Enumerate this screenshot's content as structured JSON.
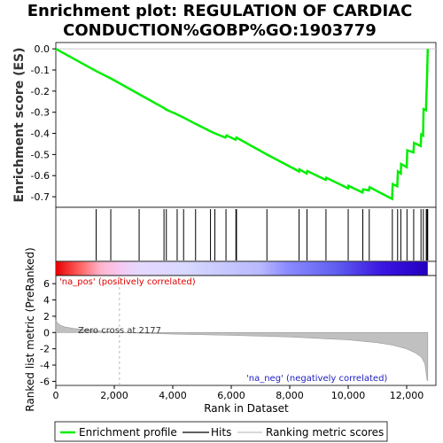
{
  "chart_data": {
    "type": "line",
    "title_line1": "Enrichment plot: REGULATION OF CARDIAC",
    "title_line2": "CONDUCTION%GOBP%GO:1903779",
    "es_panel": {
      "ylabel": "Enrichment score (ES)",
      "ylim": [
        -0.75,
        0.03
      ],
      "yticks": [
        "0.0",
        "-0.1",
        "-0.2",
        "-0.3",
        "-0.4",
        "-0.5",
        "-0.6",
        "-0.7"
      ],
      "ytick_values": [
        0.0,
        -0.1,
        -0.2,
        -0.3,
        -0.4,
        -0.5,
        -0.6,
        -0.7
      ],
      "series_color": "#00ee00",
      "profile": [
        [
          0,
          0.0
        ],
        [
          1380,
          -0.105
        ],
        [
          1880,
          -0.14
        ],
        [
          2850,
          -0.215
        ],
        [
          3700,
          -0.28
        ],
        [
          3780,
          -0.288
        ],
        [
          4150,
          -0.31
        ],
        [
          4370,
          -0.325
        ],
        [
          4780,
          -0.355
        ],
        [
          5290,
          -0.39
        ],
        [
          5440,
          -0.4
        ],
        [
          5800,
          -0.42
        ],
        [
          5840,
          -0.41
        ],
        [
          6150,
          -0.43
        ],
        [
          6180,
          -0.42
        ],
        [
          7220,
          -0.5
        ],
        [
          8320,
          -0.58
        ],
        [
          8330,
          -0.57
        ],
        [
          8580,
          -0.59
        ],
        [
          8600,
          -0.578
        ],
        [
          9230,
          -0.62
        ],
        [
          9250,
          -0.61
        ],
        [
          9990,
          -0.66
        ],
        [
          10010,
          -0.648
        ],
        [
          10490,
          -0.68
        ],
        [
          10510,
          -0.665
        ],
        [
          10710,
          -0.67
        ],
        [
          10730,
          -0.655
        ],
        [
          11500,
          -0.71
        ],
        [
          11520,
          -0.64
        ],
        [
          11680,
          -0.65
        ],
        [
          11700,
          -0.58
        ],
        [
          11800,
          -0.59
        ],
        [
          11810,
          -0.545
        ],
        [
          12000,
          -0.56
        ],
        [
          12020,
          -0.48
        ],
        [
          12230,
          -0.49
        ],
        [
          12250,
          -0.445
        ],
        [
          12480,
          -0.46
        ],
        [
          12500,
          -0.405
        ],
        [
          12560,
          -0.41
        ],
        [
          12580,
          -0.285
        ],
        [
          12660,
          -0.29
        ],
        [
          12680,
          -0.21
        ],
        [
          12700,
          -0.12
        ],
        [
          12720,
          0.0
        ]
      ]
    },
    "hits": [
      1380,
      1880,
      2850,
      3700,
      3780,
      4150,
      4370,
      4780,
      5290,
      5440,
      5820,
      6160,
      6180,
      7220,
      8320,
      8590,
      9240,
      10000,
      10500,
      10720,
      11510,
      11690,
      11800,
      12010,
      12240,
      12490,
      12570,
      12670,
      12700,
      12720
    ],
    "rank_panel": {
      "ylabel": "Ranked list metric (PreRanked)",
      "ylim": [
        -6.5,
        7
      ],
      "yticks": [
        "6",
        "4",
        "2",
        "0",
        "-2",
        "-4",
        "-6"
      ],
      "ytick_values": [
        6,
        4,
        2,
        0,
        -2,
        -4,
        -6
      ],
      "xlabel": "Rank in Dataset",
      "xlim": [
        0,
        13000
      ],
      "xticks": [
        "0",
        "2,000",
        "4,000",
        "6,000",
        "8,000",
        "10,000",
        "12,000"
      ],
      "xtick_values": [
        0,
        2000,
        4000,
        6000,
        8000,
        10000,
        12000
      ],
      "zero_cross_label": "Zero cross at 2177",
      "zero_cross": 2177,
      "pos_label": "'na_pos' (positively correlated)",
      "neg_label": "'na_neg' (negatively correlated)",
      "metric": [
        [
          0,
          1.6
        ],
        [
          50,
          1.2
        ],
        [
          150,
          0.9
        ],
        [
          300,
          0.7
        ],
        [
          600,
          0.5
        ],
        [
          1000,
          0.35
        ],
        [
          1500,
          0.2
        ],
        [
          2177,
          0.0
        ],
        [
          4000,
          -0.2
        ],
        [
          6000,
          -0.35
        ],
        [
          8000,
          -0.55
        ],
        [
          10000,
          -0.9
        ],
        [
          11000,
          -1.25
        ],
        [
          11500,
          -1.55
        ],
        [
          12000,
          -2.0
        ],
        [
          12300,
          -2.5
        ],
        [
          12500,
          -3.0
        ],
        [
          12620,
          -3.8
        ],
        [
          12700,
          -5.9
        ],
        [
          12720,
          -5.9
        ]
      ]
    },
    "legend": [
      "Enrichment profile",
      "Hits",
      "Ranking metric scores"
    ]
  }
}
